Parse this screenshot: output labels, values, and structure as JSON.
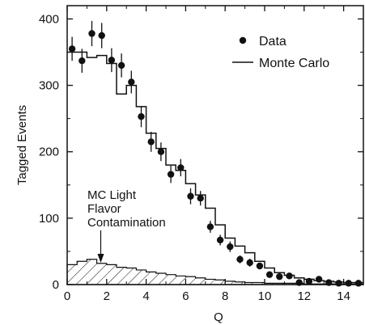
{
  "chart_data": {
    "type": "scatter",
    "xlabel": "Q",
    "ylabel": "Tagged Events",
    "xlim": [
      0,
      15
    ],
    "ylim": [
      0,
      420
    ],
    "xticks": [
      0,
      2,
      4,
      6,
      8,
      10,
      12,
      14
    ],
    "yticks": [
      0,
      100,
      200,
      300,
      400
    ],
    "grid": false,
    "legend": {
      "placement": "top-right",
      "entries": [
        {
          "label": "Data",
          "marker": "filled-circle"
        },
        {
          "label": "Monte Carlo",
          "marker": "line"
        }
      ]
    },
    "annotation": {
      "lines": [
        "MC Light",
        "Flavor",
        "Contamination"
      ],
      "arrow_target_x": 1.7
    },
    "bin_width": 0.5,
    "data": {
      "name": "Data",
      "x": [
        0.25,
        0.75,
        1.25,
        1.75,
        2.25,
        2.75,
        3.25,
        3.75,
        4.25,
        4.75,
        5.25,
        5.75,
        6.25,
        6.75,
        7.25,
        7.75,
        8.25,
        8.75,
        9.25,
        9.75,
        10.25,
        10.75,
        11.25,
        11.75,
        12.25,
        12.75,
        13.25,
        13.75,
        14.25,
        14.75
      ],
      "y": [
        355,
        337,
        378,
        375,
        338,
        330,
        305,
        253,
        215,
        200,
        166,
        176,
        133,
        130,
        87,
        67,
        57,
        38,
        33,
        28,
        15,
        12,
        13,
        3,
        5,
        8,
        3,
        2,
        2,
        2
      ],
      "err": [
        18,
        18,
        19,
        19,
        18,
        18,
        17,
        16,
        15,
        14,
        13,
        13,
        12,
        11,
        9,
        8,
        8,
        6,
        6,
        5,
        4,
        3,
        4,
        2,
        2,
        3,
        2,
        1,
        1,
        1
      ]
    },
    "monte_carlo": {
      "name": "Monte Carlo",
      "bin_edges": [
        0,
        0.5,
        1,
        1.5,
        2,
        2.5,
        3,
        3.5,
        4,
        4.5,
        5,
        5.5,
        6,
        6.5,
        7,
        7.5,
        8,
        8.5,
        9,
        9.5,
        10,
        10.5,
        11,
        11.5,
        12,
        12.5,
        13,
        13.5,
        14,
        14.5,
        15
      ],
      "values": [
        350,
        350,
        342,
        345,
        333,
        287,
        300,
        268,
        228,
        205,
        180,
        172,
        152,
        135,
        115,
        90,
        70,
        58,
        48,
        35,
        25,
        18,
        14,
        10,
        8,
        6,
        5,
        4,
        3,
        3
      ]
    },
    "light_flavor": {
      "name": "MC Light Flavor Contamination",
      "bin_edges": [
        0,
        0.5,
        1,
        1.5,
        2,
        2.5,
        3,
        3.5,
        4,
        4.5,
        5,
        5.5,
        6,
        6.5,
        7,
        7.5,
        8,
        8.5,
        9,
        9.5,
        10,
        10.5,
        11,
        11.5,
        12,
        12.5,
        13,
        13.5,
        14,
        14.5,
        15
      ],
      "values": [
        30,
        35,
        38,
        32,
        30,
        26,
        25,
        22,
        19,
        17,
        15,
        13,
        12,
        10,
        8,
        7,
        5,
        4,
        3,
        3,
        2,
        2,
        2,
        2,
        1,
        1,
        1,
        1,
        1,
        1
      ]
    }
  }
}
